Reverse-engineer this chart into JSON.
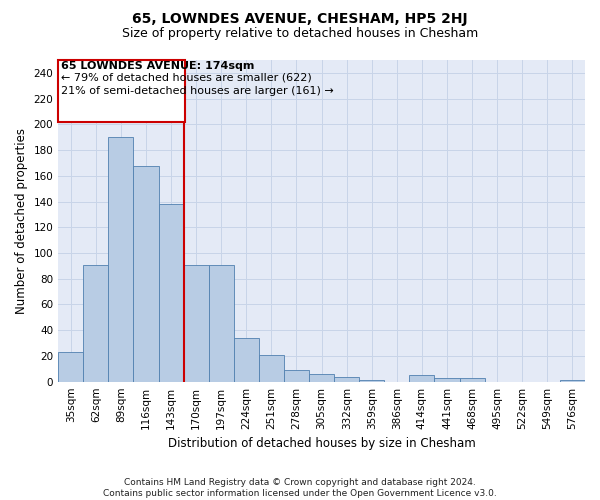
{
  "title": "65, LOWNDES AVENUE, CHESHAM, HP5 2HJ",
  "subtitle": "Size of property relative to detached houses in Chesham",
  "xlabel": "Distribution of detached houses by size in Chesham",
  "ylabel": "Number of detached properties",
  "categories": [
    "35sqm",
    "62sqm",
    "89sqm",
    "116sqm",
    "143sqm",
    "170sqm",
    "197sqm",
    "224sqm",
    "251sqm",
    "278sqm",
    "305sqm",
    "332sqm",
    "359sqm",
    "386sqm",
    "414sqm",
    "441sqm",
    "468sqm",
    "495sqm",
    "522sqm",
    "549sqm",
    "576sqm"
  ],
  "values": [
    23,
    91,
    190,
    168,
    138,
    91,
    91,
    34,
    21,
    9,
    6,
    4,
    1,
    0,
    5,
    3,
    3,
    0,
    0,
    0,
    1
  ],
  "bar_color": "#b8cce4",
  "bar_edge_color": "#5080b0",
  "vline_x": 4.5,
  "vline_color": "#cc0000",
  "annotation_line1": "65 LOWNDES AVENUE: 174sqm",
  "annotation_line2": "← 79% of detached houses are smaller (622)",
  "annotation_line3": "21% of semi-detached houses are larger (161) →",
  "annotation_box_color": "#ffffff",
  "annotation_box_edge": "#cc0000",
  "ylim": [
    0,
    250
  ],
  "yticks": [
    0,
    20,
    40,
    60,
    80,
    100,
    120,
    140,
    160,
    180,
    200,
    220,
    240
  ],
  "grid_color": "#c8d4e8",
  "background_color": "#e4eaf6",
  "footer": "Contains HM Land Registry data © Crown copyright and database right 2024.\nContains public sector information licensed under the Open Government Licence v3.0.",
  "title_fontsize": 10,
  "subtitle_fontsize": 9,
  "xlabel_fontsize": 8.5,
  "ylabel_fontsize": 8.5,
  "tick_fontsize": 7.5,
  "annotation_fontsize": 8,
  "footer_fontsize": 6.5
}
